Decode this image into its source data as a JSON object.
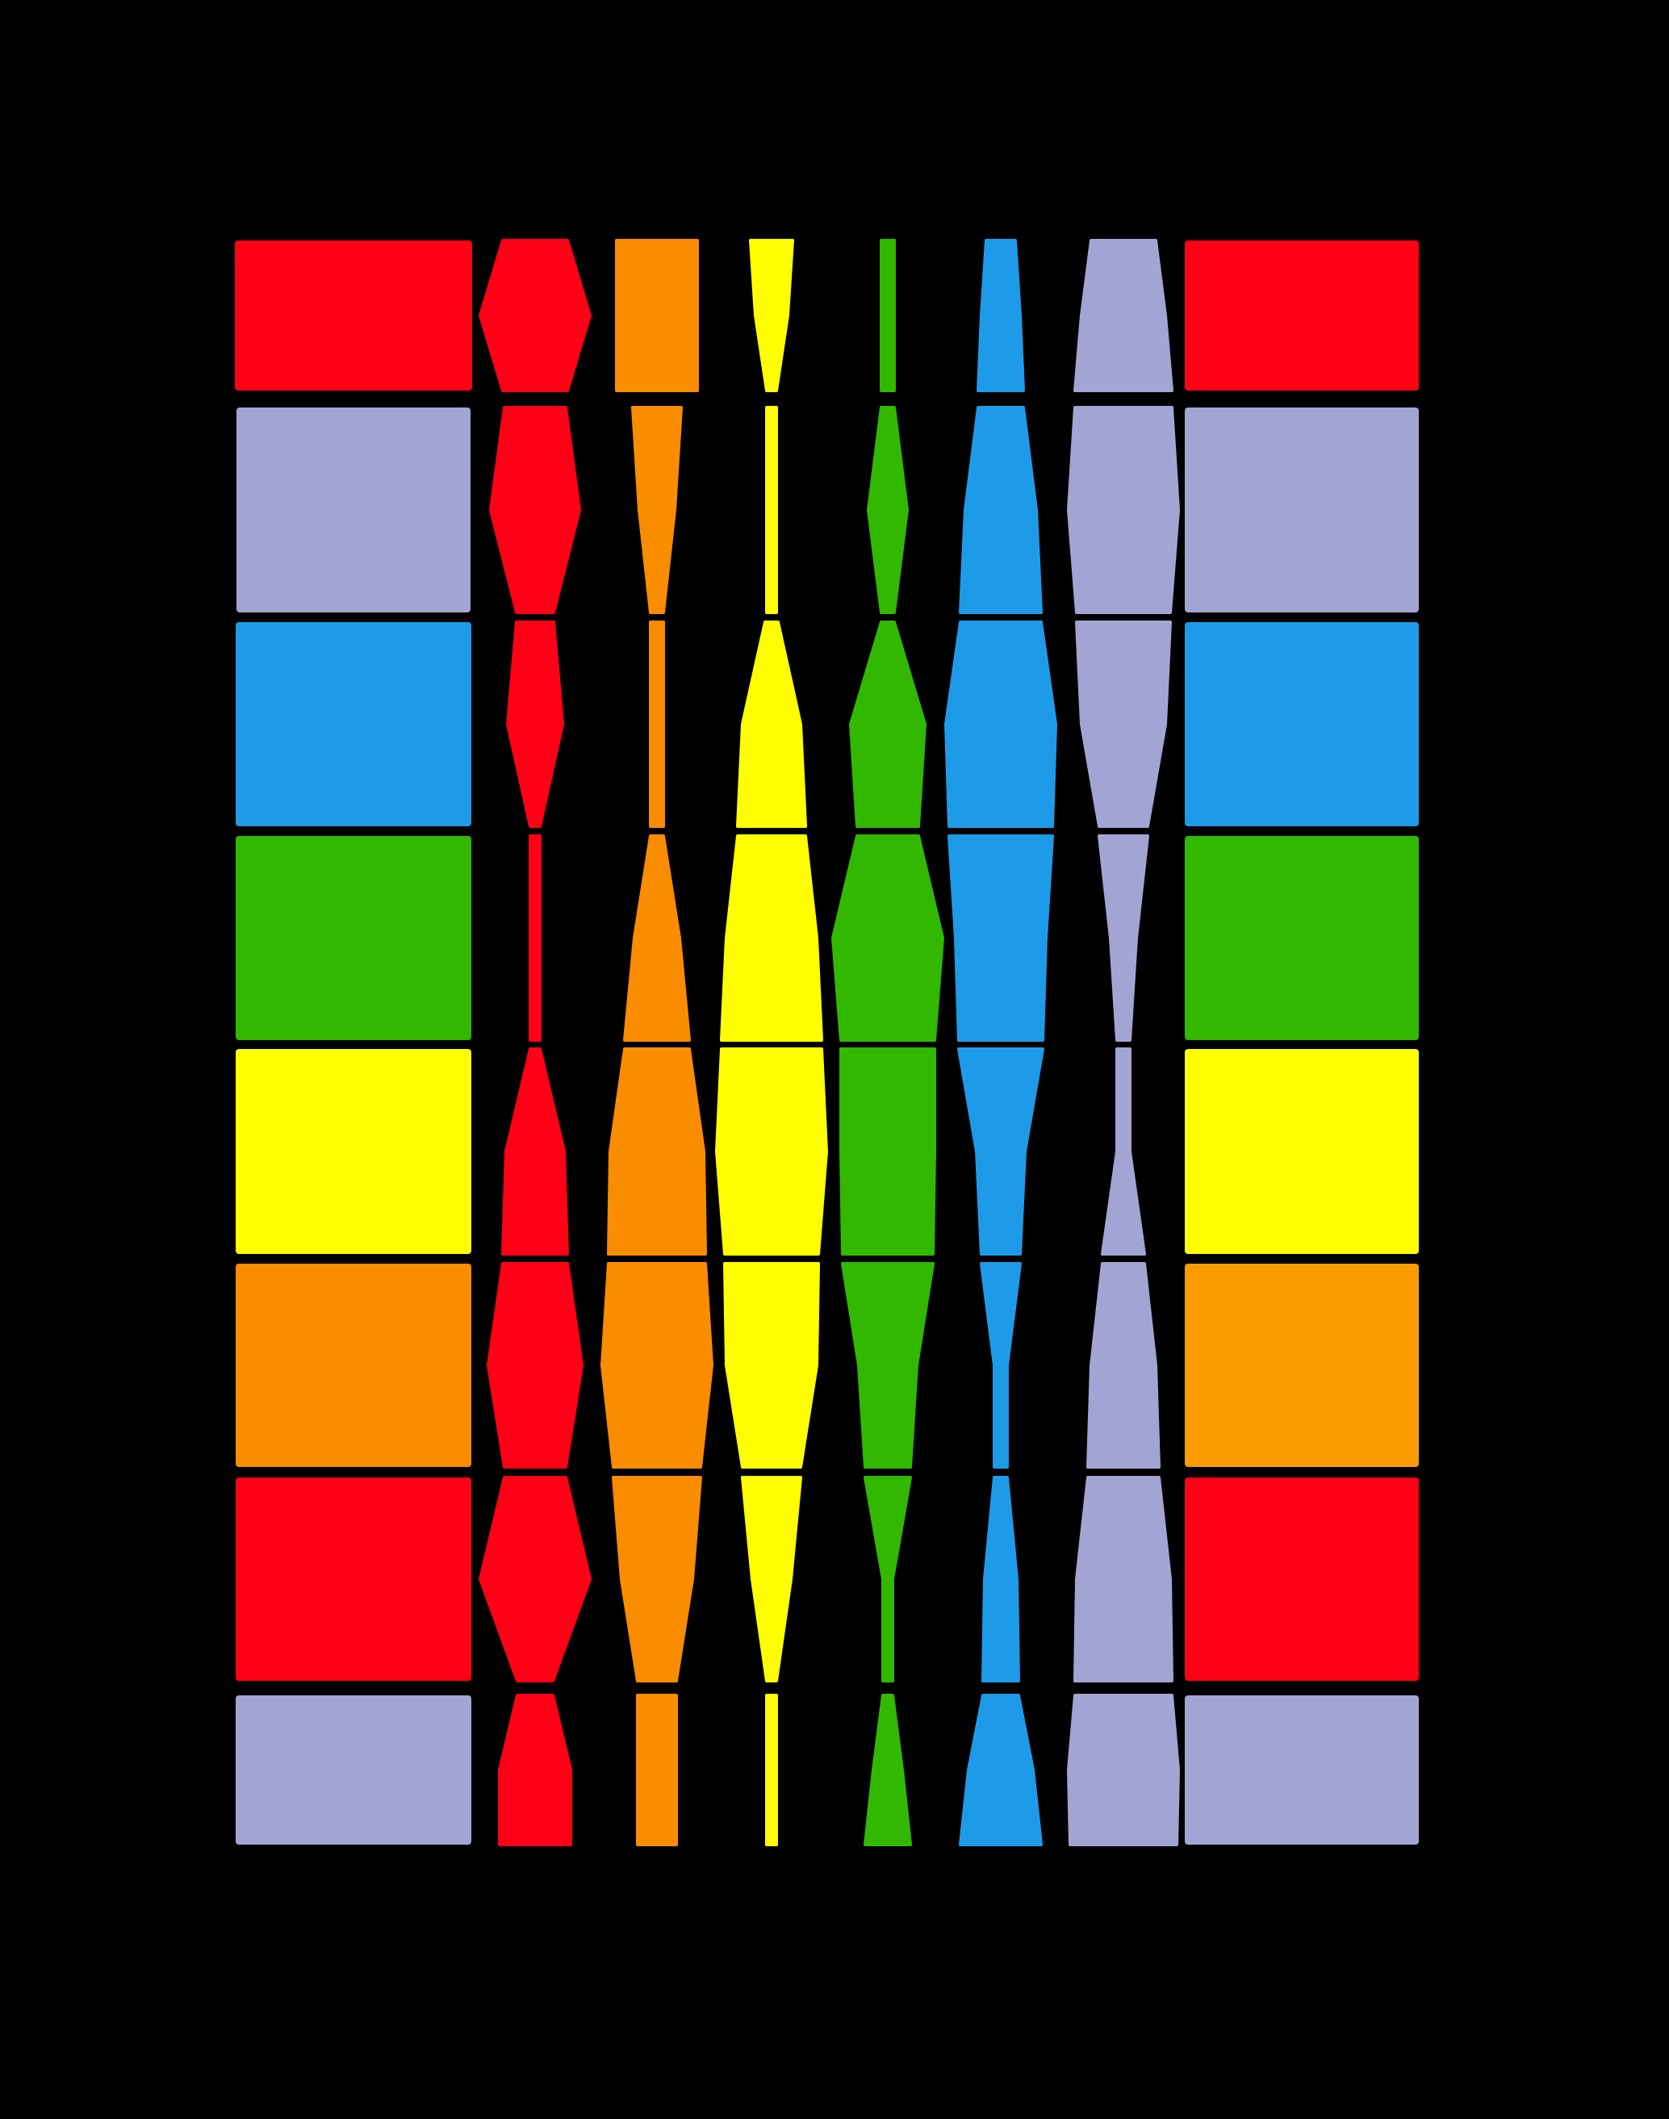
{
  "artwork": {
    "background_color": "#000000",
    "palette": {
      "red": "#FF0016",
      "lavender": "#A2A5D3",
      "blue": "#1E9BE8",
      "green": "#33B800",
      "yellow": "#FFFF00",
      "orange": "#FA8C00",
      "amber": "#FA9C00"
    },
    "columns": [
      {
        "name": "outer-left",
        "shape": "rectangles",
        "colors": [
          "red",
          "lavender",
          "blue",
          "green",
          "yellow",
          "orange",
          "red",
          "lavender"
        ]
      },
      {
        "name": "red-column",
        "shape": "diamond-bands",
        "colors": [
          "red",
          "red",
          "red",
          "red",
          "red",
          "red",
          "red",
          "red"
        ]
      },
      {
        "name": "orange-column",
        "shape": "diamond-bands",
        "colors": [
          "orange",
          "orange",
          "orange",
          "orange",
          "orange",
          "orange",
          "orange",
          "orange"
        ]
      },
      {
        "name": "yellow-column",
        "shape": "diamond-bands",
        "colors": [
          "yellow",
          "yellow",
          "yellow",
          "yellow",
          "yellow",
          "yellow",
          "yellow",
          "yellow"
        ]
      },
      {
        "name": "green-column",
        "shape": "diamond-bands",
        "colors": [
          "green",
          "green",
          "green",
          "green",
          "green",
          "green",
          "green",
          "green"
        ]
      },
      {
        "name": "blue-column",
        "shape": "diamond-bands",
        "colors": [
          "blue",
          "blue",
          "blue",
          "blue",
          "blue",
          "blue",
          "blue",
          "blue"
        ]
      },
      {
        "name": "lavender-column",
        "shape": "diamond-bands",
        "colors": [
          "lavender",
          "lavender",
          "lavender",
          "lavender",
          "lavender",
          "lavender",
          "lavender",
          "lavender"
        ]
      },
      {
        "name": "outer-right",
        "shape": "rectangles",
        "colors": [
          "red",
          "lavender",
          "blue",
          "green",
          "yellow",
          "amber",
          "red",
          "lavender"
        ]
      }
    ]
  }
}
